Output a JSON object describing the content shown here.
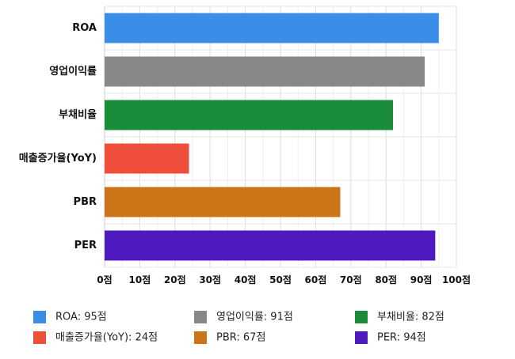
{
  "chart_data": {
    "type": "bar",
    "orientation": "horizontal",
    "categories": [
      "ROA",
      "영업이익률",
      "부채비율",
      "매출증가율(YoY)",
      "PBR",
      "PER"
    ],
    "values": [
      95,
      91,
      82,
      24,
      67,
      94
    ],
    "colors": [
      "#3b8ee8",
      "#888888",
      "#1a8c3a",
      "#ef4f3a",
      "#cc7518",
      "#4e1abf"
    ],
    "xlim": [
      0,
      100
    ],
    "x_ticks": [
      0,
      10,
      20,
      30,
      40,
      50,
      60,
      70,
      80,
      90,
      100
    ],
    "tick_suffix": "점",
    "grid": true,
    "legend_placement": "bottom",
    "legend_labels": [
      "ROA: 95점",
      "영업이익률: 91점",
      "부채비율: 82점",
      "매출증가율(YoY): 24점",
      "PBR: 67점",
      "PER: 94점"
    ]
  }
}
